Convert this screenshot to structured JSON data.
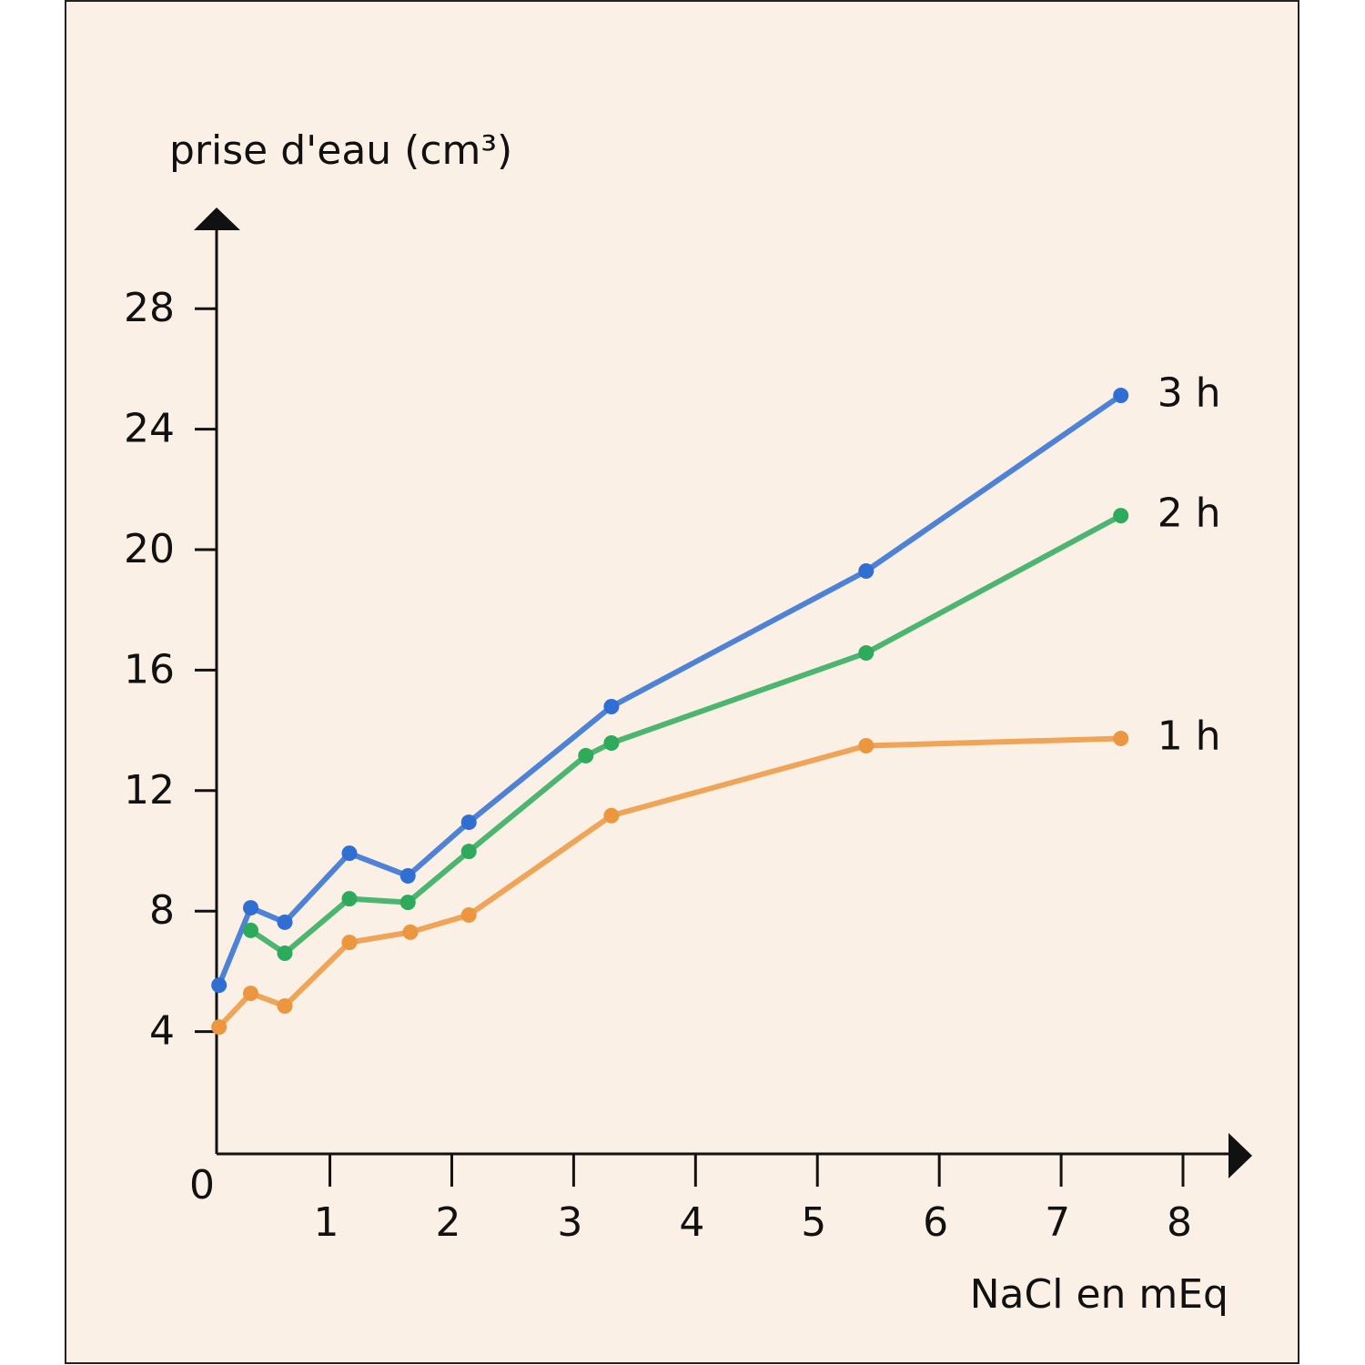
{
  "chart_data": {
    "type": "line",
    "y_label": "prise d'eau (cm³)",
    "x_label": "NaCl en mEq",
    "origin_label": "0",
    "xlim": [
      0.07,
      8.56
    ],
    "ylim": [
      0,
      31.3
    ],
    "xticks": [
      1,
      2,
      3,
      4,
      5,
      6,
      7,
      8
    ],
    "yticks": [
      4,
      8,
      12,
      16,
      20,
      24,
      28
    ],
    "series": [
      {
        "name": "3 h",
        "color": "#2f6fd3",
        "x": [
          0.09,
          0.35,
          0.63,
          1.16,
          1.64,
          2.14,
          3.31,
          5.4,
          7.49
        ],
        "values": [
          5.54,
          8.11,
          7.63,
          9.92,
          9.17,
          10.95,
          14.79,
          19.29,
          25.12
        ]
      },
      {
        "name": "2 h",
        "color": "#2daa5c",
        "x": [
          0.35,
          0.63,
          1.16,
          1.64,
          2.14,
          3.1,
          3.31,
          5.4,
          7.49
        ],
        "values": [
          7.36,
          6.6,
          8.41,
          8.29,
          9.98,
          13.16,
          13.58,
          16.57,
          21.13
        ]
      },
      {
        "name": "1 h",
        "color": "#ec973f",
        "x": [
          0.09,
          0.35,
          0.63,
          1.16,
          1.66,
          2.14,
          3.31,
          5.4,
          7.49
        ],
        "values": [
          4.15,
          5.27,
          4.85,
          6.96,
          7.3,
          7.87,
          11.17,
          13.49,
          13.73
        ]
      }
    ]
  }
}
